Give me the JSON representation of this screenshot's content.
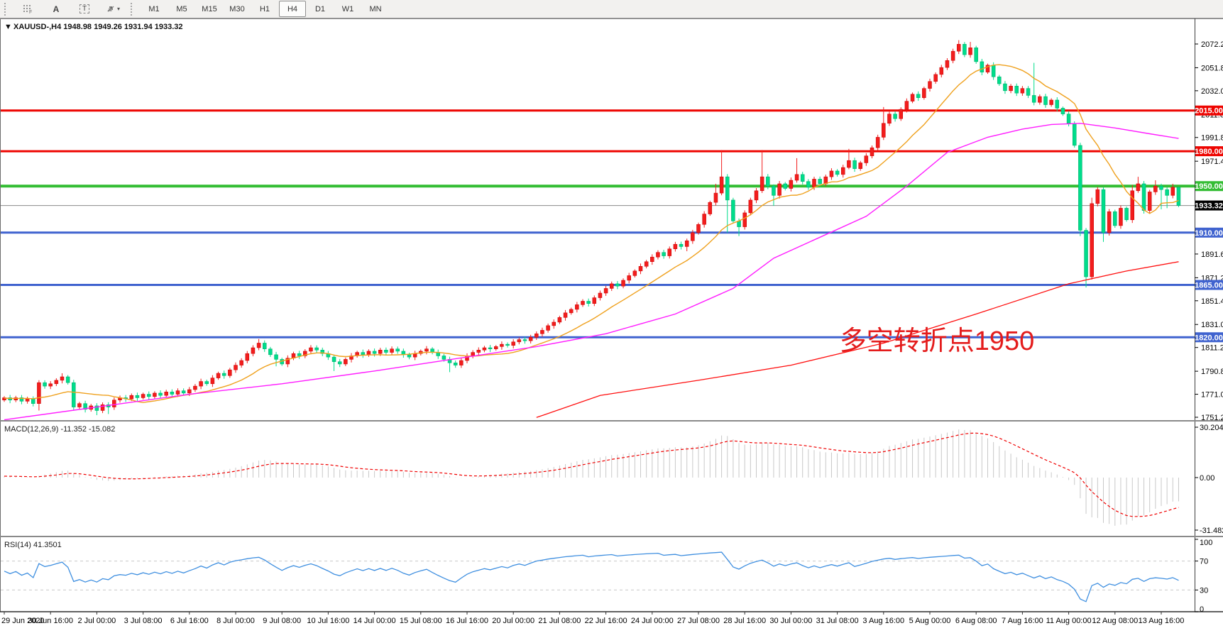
{
  "toolbar": {
    "icons": [
      {
        "name": "grid-dots-icon",
        "hint": "F"
      },
      {
        "name": "text-a-icon",
        "label": "A"
      },
      {
        "name": "text-box-icon",
        "label": "T"
      },
      {
        "name": "arrows-icon",
        "caret": "▾"
      }
    ],
    "timeframes": [
      "M1",
      "M5",
      "M15",
      "M30",
      "H1",
      "H4",
      "D1",
      "W1",
      "MN"
    ],
    "active_timeframe": "H4"
  },
  "chart_data": {
    "type": "candlestick",
    "title_marker": "▼",
    "title": "XAUUSD-,H4  1948.98 1949.26 1931.94 1933.32",
    "symbol": "XAUUSD-",
    "period": "H4",
    "current_candle": {
      "open": 1948.98,
      "high": 1949.26,
      "low": 1931.94,
      "close": 1933.32
    },
    "annotation": {
      "text": "多空转折点1950",
      "color": "#e41c1c"
    },
    "x_labels": [
      "29 Jun 2020",
      "30 Jun 16:00",
      "2 Jul 00:00",
      "3 Jul 08:00",
      "6 Jul 16:00",
      "8 Jul 00:00",
      "9 Jul 08:00",
      "10 Jul 16:00",
      "14 Jul 00:00",
      "15 Jul 08:00",
      "16 Jul 16:00",
      "20 Jul 00:00",
      "21 Jul 08:00",
      "22 Jul 16:00",
      "24 Jul 00:00",
      "27 Jul 08:00",
      "28 Jul 16:00",
      "30 Jul 00:00",
      "31 Jul 08:00",
      "3 Aug 16:00",
      "5 Aug 00:00",
      "6 Aug 08:00",
      "7 Aug 16:00",
      "11 Aug 00:00",
      "12 Aug 08:00",
      "13 Aug 16:00"
    ],
    "candles_per_label": 8,
    "y_axis": {
      "price_top": 2072.2,
      "price_bottom": 1751.2,
      "ticks": [
        {
          "label": "2072.20",
          "price": 2072.2
        },
        {
          "label": "2051.80",
          "price": 2051.8
        },
        {
          "label": "2032.00",
          "price": 2032.0
        },
        {
          "label": "2011.60",
          "price": 2011.6
        },
        {
          "label": "1991.80",
          "price": 1991.8
        },
        {
          "label": "1971.40",
          "price": 1971.4
        },
        {
          "label": "1891.60",
          "price": 1891.6
        },
        {
          "label": "1871.20",
          "price": 1871.2
        },
        {
          "label": "1851.40",
          "price": 1851.4
        },
        {
          "label": "1831.00",
          "price": 1831.0
        },
        {
          "label": "1811.20",
          "price": 1811.2
        },
        {
          "label": "1790.80",
          "price": 1790.8
        },
        {
          "label": "1771.00",
          "price": 1771.0
        },
        {
          "label": "1751.20",
          "price": 1751.2
        }
      ]
    },
    "levels": [
      {
        "label": "2015.00",
        "price": 2015.0,
        "color": "#ee0400",
        "width": 3
      },
      {
        "label": "1980.00",
        "price": 1980.0,
        "color": "#ee0400",
        "width": 3
      },
      {
        "label": "1950.00",
        "price": 1950.0,
        "color": "#33bd33",
        "width": 4
      },
      {
        "label": "1910.00",
        "price": 1910.0,
        "color": "#4063cf",
        "width": 3
      },
      {
        "label": "1865.00",
        "price": 1865.0,
        "color": "#4063cf",
        "width": 3
      },
      {
        "label": "1820.00",
        "price": 1820.0,
        "color": "#4063cf",
        "width": 3
      }
    ],
    "current_price": {
      "label": "1933.32",
      "value": 1933.32,
      "line_color": "#8a8a8a",
      "label_bg": "#000000"
    },
    "colors": {
      "bull": "#f21d1d",
      "bull_dark": "#c90000",
      "bear": "#00dd8b",
      "bear_dark": "#00a868",
      "orange_ma": "#efa11e",
      "magenta_ma": "#ff1cff",
      "red_trend": "#ff0e0e"
    },
    "open_first": 1766,
    "closes": [
      1768,
      1766,
      1768,
      1765,
      1767,
      1763,
      1781,
      1778,
      1780,
      1783,
      1786,
      1781,
      1760,
      1763,
      1758,
      1761,
      1757,
      1762,
      1760,
      1766,
      1768,
      1767,
      1770,
      1768,
      1771,
      1769,
      1772,
      1770,
      1773,
      1771,
      1774,
      1772,
      1775,
      1778,
      1782,
      1780,
      1785,
      1789,
      1787,
      1792,
      1796,
      1800,
      1806,
      1811,
      1815,
      1810,
      1805,
      1801,
      1797,
      1802,
      1806,
      1804,
      1808,
      1811,
      1809,
      1806,
      1803,
      1799,
      1797,
      1801,
      1804,
      1807,
      1805,
      1808,
      1806,
      1809,
      1807,
      1810,
      1808,
      1805,
      1803,
      1806,
      1808,
      1810,
      1807,
      1804,
      1801,
      1798,
      1796,
      1800,
      1804,
      1807,
      1809,
      1811,
      1810,
      1812,
      1814,
      1813,
      1816,
      1818,
      1817,
      1820,
      1823,
      1826,
      1830,
      1833,
      1837,
      1841,
      1844,
      1848,
      1851,
      1849,
      1854,
      1858,
      1862,
      1866,
      1864,
      1869,
      1873,
      1877,
      1881,
      1885,
      1889,
      1893,
      1890,
      1896,
      1900,
      1898,
      1903,
      1910,
      1917,
      1926,
      1936,
      1944,
      1958,
      1938,
      1920,
      1915,
      1927,
      1938,
      1946,
      1958,
      1950,
      1942,
      1952,
      1948,
      1955,
      1960,
      1954,
      1949,
      1956,
      1952,
      1958,
      1963,
      1960,
      1966,
      1972,
      1965,
      1970,
      1976,
      1983,
      1992,
      2004,
      2012,
      2008,
      2016,
      2023,
      2029,
      2026,
      2034,
      2040,
      2046,
      2052,
      2058,
      2066,
      2072,
      2063,
      2069,
      2057,
      2048,
      2054,
      2044,
      2038,
      2032,
      2036,
      2030,
      2034,
      2028,
      2022,
      2027,
      2020,
      2024,
      2017,
      2012,
      2004,
      1985,
      1912,
      1872,
      1935,
      1947,
      1910,
      1928,
      1916,
      1931,
      1921,
      1946,
      1952,
      1929,
      1945,
      1950,
      1947,
      1942,
      1949,
      1933.32
    ],
    "prefix_closes": [
      1762,
      1764,
      1761,
      1763,
      1766,
      1764,
      1762,
      1765,
      1767,
      1764,
      1766,
      1763,
      1765,
      1768,
      1766,
      1763,
      1761,
      1764,
      1766,
      1768,
      1765,
      1763,
      1766,
      1769,
      1767,
      1764,
      1766,
      1768,
      1770,
      1767,
      1765,
      1768,
      1766,
      1769,
      1771,
      1768,
      1766,
      1769,
      1767,
      1766
    ],
    "wick_overrides": {
      "6": {
        "lo": 6
      },
      "10": {
        "hi": 3
      },
      "12": {
        "lo": 3
      },
      "16": {
        "lo": 4
      },
      "18": {
        "lo": 6
      },
      "44": {
        "hi": 3.5
      },
      "47": {
        "lo": 6
      },
      "57": {
        "lo": 8
      },
      "77": {
        "lo": 8
      },
      "118": {
        "lo": 4
      },
      "123": {
        "hi": 8
      },
      "124": {
        "hi": 23
      },
      "125": {
        "lo": 28
      },
      "127": {
        "lo": 8
      },
      "131": {
        "hi": 23
      },
      "133": {
        "lo": 9
      },
      "137": {
        "hi": 14
      },
      "146": {
        "hi": 10
      },
      "152": {
        "hi": 14
      },
      "165": {
        "hi": 3.5
      },
      "167": {
        "hi": 5
      },
      "178": {
        "hi": 28
      },
      "186": {
        "lo": 5
      },
      "187": {
        "lo": 9.2
      },
      "188": {
        "hi": 5
      },
      "190": {
        "lo": 8
      },
      "195": {
        "hi": 5
      },
      "196": {
        "hi": 6
      },
      "199": {
        "hi": 5
      },
      "200": {
        "lo": 17
      },
      "201": {
        "lo": 11
      },
      "202": {
        "hi": 3
      }
    },
    "ma": {
      "orange": {
        "period": 13
      },
      "magenta": {
        "anchors": [
          [
            0,
            1749
          ],
          [
            16,
            1760
          ],
          [
            32,
            1771
          ],
          [
            48,
            1780
          ],
          [
            64,
            1791
          ],
          [
            80,
            1803
          ],
          [
            92,
            1812
          ],
          [
            104,
            1823
          ],
          [
            116,
            1840
          ],
          [
            126,
            1862
          ],
          [
            133,
            1888
          ],
          [
            141,
            1906
          ],
          [
            149,
            1924
          ],
          [
            156,
            1950
          ],
          [
            163,
            1979
          ],
          [
            170,
            1992
          ],
          [
            176,
            1999
          ],
          [
            181,
            2003
          ],
          [
            186,
            2004
          ],
          [
            192,
            2000
          ],
          [
            198,
            1995
          ],
          [
            203,
            1991
          ]
        ]
      },
      "red": {
        "anchors": [
          [
            92,
            1751
          ],
          [
            103,
            1770
          ],
          [
            120,
            1783
          ],
          [
            136,
            1796
          ],
          [
            152,
            1815
          ],
          [
            168,
            1840
          ],
          [
            184,
            1866
          ],
          [
            194,
            1877
          ],
          [
            203,
            1885
          ]
        ]
      }
    },
    "macd": {
      "label": "MACD(12,26,9) -11.352 -15.082",
      "fast": 12,
      "slow": 26,
      "signal": 9,
      "value_main": -11.352,
      "value_signal": -15.082,
      "scale": [
        {
          "label": "30.204",
          "value": 30.204
        },
        {
          "label": "0.00",
          "value": 0
        },
        {
          "label": "-31.482",
          "value": -31.482
        }
      ],
      "bar_color": "#c8c8c8",
      "signal_color": "#f00000"
    },
    "rsi": {
      "label": "RSI(14) 41.3501",
      "period": 14,
      "value": 41.3501,
      "scale": [
        {
          "label": "100",
          "value": 100
        },
        {
          "label": "70",
          "value": 70
        },
        {
          "label": "30",
          "value": 30
        },
        {
          "label": "0",
          "value": 0
        }
      ],
      "dashed_levels": [
        70,
        30
      ],
      "color": "#3f8fe0",
      "level_color": "#c8c8c8"
    }
  }
}
